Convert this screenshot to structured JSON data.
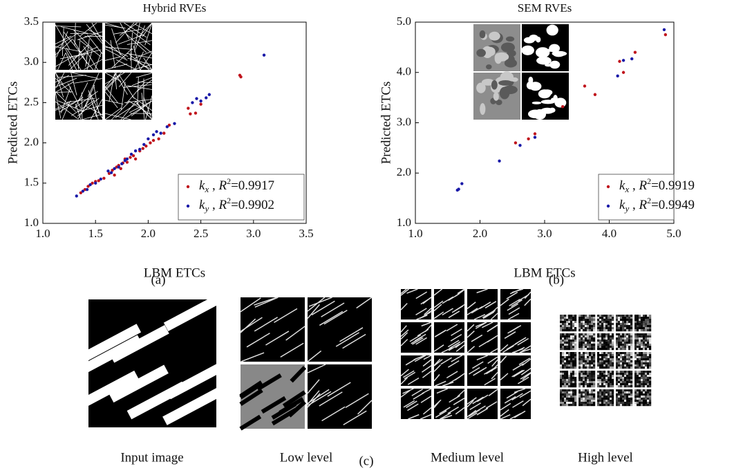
{
  "chart_data": [
    {
      "type": "scatter",
      "title": "Hybrid RVEs",
      "x_label": "LBM ETCs",
      "y_label": "Predicted ETCs",
      "panel_label": "(a)",
      "xlim": [
        1,
        3.5
      ],
      "ylim": [
        1,
        3.5
      ],
      "xticks": [
        {
          "value": 1,
          "label": "1.0"
        },
        {
          "value": 1.5,
          "label": "1.5"
        },
        {
          "value": 2,
          "label": "2.0"
        },
        {
          "value": 2.5,
          "label": "2.5"
        },
        {
          "value": 3,
          "label": "3.0"
        },
        {
          "value": 3.5,
          "label": "3.5"
        }
      ],
      "yticks": [
        {
          "value": 1,
          "label": "1.0"
        },
        {
          "value": 1.5,
          "label": "1.5"
        },
        {
          "value": 2,
          "label": "2.0"
        },
        {
          "value": 2.5,
          "label": "2.5"
        },
        {
          "value": 3,
          "label": "3.0"
        },
        {
          "value": 3.5,
          "label": "3.5"
        }
      ],
      "legend": "lower right",
      "series": [
        {
          "name": "k",
          "subscript": "x",
          "separator": " , ",
          "r2_symbol": "R",
          "r2_superscript": "2",
          "r2_value": "=0.9917",
          "color": "#c0141c",
          "x": [
            1.36,
            1.4,
            1.43,
            1.47,
            1.5,
            1.53,
            1.58,
            1.63,
            1.66,
            1.68,
            1.7,
            1.72,
            1.74,
            1.76,
            1.78,
            1.8,
            1.83,
            1.86,
            1.88,
            1.92,
            1.95,
            1.98,
            2.02,
            2.05,
            2.1,
            2.15,
            2.2,
            2.38,
            2.4,
            2.45,
            2.5,
            2.87,
            2.88
          ],
          "values": [
            1.38,
            1.42,
            1.46,
            1.5,
            1.52,
            1.53,
            1.56,
            1.62,
            1.66,
            1.6,
            1.7,
            1.72,
            1.68,
            1.75,
            1.8,
            1.76,
            1.82,
            1.84,
            1.8,
            1.9,
            1.93,
            1.96,
            2.0,
            2.03,
            2.05,
            2.12,
            2.22,
            2.43,
            2.36,
            2.37,
            2.48,
            2.84,
            2.82
          ]
        },
        {
          "name": "k",
          "subscript": "y",
          "separator": " , ",
          "r2_symbol": "R",
          "r2_superscript": "2",
          "r2_value": "=0.9902",
          "color": "#1a1aa8",
          "x": [
            1.32,
            1.38,
            1.42,
            1.45,
            1.5,
            1.55,
            1.62,
            1.65,
            1.68,
            1.72,
            1.75,
            1.78,
            1.8,
            1.84,
            1.88,
            1.92,
            1.96,
            2.0,
            2.05,
            2.08,
            2.12,
            2.18,
            2.25,
            2.42,
            2.46,
            2.5,
            2.55,
            2.58,
            3.1
          ],
          "values": [
            1.34,
            1.4,
            1.42,
            1.48,
            1.5,
            1.55,
            1.65,
            1.63,
            1.68,
            1.7,
            1.74,
            1.78,
            1.8,
            1.86,
            1.9,
            1.92,
            1.98,
            2.05,
            2.1,
            2.14,
            2.12,
            2.2,
            2.24,
            2.5,
            2.55,
            2.52,
            2.56,
            2.6,
            3.09
          ]
        }
      ]
    },
    {
      "type": "scatter",
      "title": "SEM RVEs",
      "x_label": "LBM ETCs",
      "y_label": "Predicted ETCs",
      "panel_label": "(b)",
      "xlim": [
        1,
        5
      ],
      "ylim": [
        1,
        5
      ],
      "xticks": [
        {
          "value": 1,
          "label": "1.0"
        },
        {
          "value": 2,
          "label": "2.0"
        },
        {
          "value": 3,
          "label": "3.0"
        },
        {
          "value": 4,
          "label": "4.0"
        },
        {
          "value": 5,
          "label": "5.0"
        }
      ],
      "yticks": [
        {
          "value": 1,
          "label": "1.0"
        },
        {
          "value": 2,
          "label": "2.0"
        },
        {
          "value": 3,
          "label": "3.0"
        },
        {
          "value": 4,
          "label": "4.0"
        },
        {
          "value": 5,
          "label": "5.0"
        }
      ],
      "legend": "lower right",
      "series": [
        {
          "name": "k",
          "subscript": "x",
          "separator": " , ",
          "r2_symbol": "R",
          "r2_superscript": "2",
          "r2_value": "=0.9919",
          "color": "#c0141c",
          "x": [
            2.55,
            2.75,
            2.85,
            3.28,
            3.62,
            3.78,
            4.16,
            4.22,
            4.4,
            4.87
          ],
          "values": [
            2.6,
            2.68,
            2.78,
            3.32,
            3.73,
            3.56,
            4.22,
            4.0,
            4.4,
            4.75
          ]
        },
        {
          "name": "k",
          "subscript": "y",
          "separator": " , ",
          "r2_symbol": "R",
          "r2_superscript": "2",
          "r2_value": "=0.9949",
          "color": "#1a1aa8",
          "x": [
            1.65,
            1.67,
            1.72,
            2.3,
            2.62,
            2.85,
            4.13,
            4.22,
            4.35,
            4.85
          ],
          "values": [
            1.66,
            1.68,
            1.79,
            2.24,
            2.55,
            2.71,
            3.93,
            4.24,
            4.27,
            4.85
          ]
        }
      ]
    }
  ],
  "figure_c": {
    "panel_label": "(c)",
    "captions": [
      "Input image",
      "Low level",
      "Medium level",
      "High level"
    ]
  }
}
